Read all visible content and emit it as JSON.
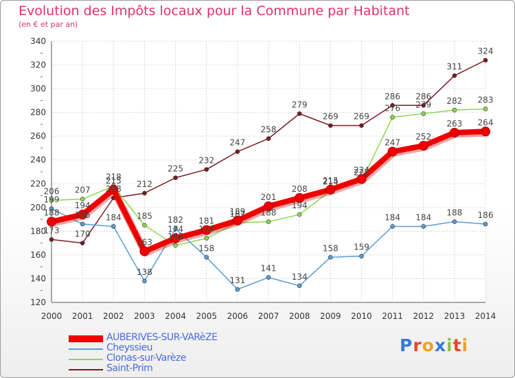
{
  "header": {
    "title": "Evolution des Impôts locaux pour la Commune par Habitant",
    "subtitle": "(en € et par an)"
  },
  "chart_data": {
    "type": "line",
    "title": "Evolution des Impôts locaux pour la Commune par Habitant",
    "subtitle": "(en € et par an)",
    "x": [
      "2000",
      "2001",
      "2002",
      "2003",
      "2004",
      "2005",
      "2006",
      "2007",
      "2008",
      "2009",
      "2010",
      "2011",
      "2012",
      "2013",
      "2014"
    ],
    "ylim": [
      120,
      340
    ],
    "yticks": [
      120,
      140,
      160,
      180,
      200,
      220,
      240,
      260,
      280,
      300,
      320,
      340
    ],
    "grid": true,
    "legend_position": "bottom-left",
    "series": [
      {
        "name": "Saint-Prim",
        "color": "#7a1a22",
        "values": [
          173,
          170,
          208,
          212,
          225,
          232,
          247,
          258,
          279,
          269,
          269,
          286,
          286,
          311,
          324
        ]
      },
      {
        "name": "Clonas-sur-Varèze",
        "color": "#8ed650",
        "values": [
          206,
          207,
          218,
          185,
          168,
          174,
          187,
          188,
          194,
          214,
          222,
          276,
          279,
          282,
          283
        ]
      },
      {
        "name": "Cheyssieu",
        "color": "#5a9bd5",
        "values": [
          199,
          186,
          184,
          138,
          182,
          158,
          131,
          141,
          134,
          158,
          159,
          184,
          184,
          188,
          186
        ]
      },
      {
        "name": "AUBERIVES-SUR-VARèZE",
        "color": "#ee0000",
        "values": [
          188,
          194,
          215,
          163,
          174,
          181,
          189,
          201,
          208,
          215,
          224,
          247,
          252,
          263,
          264
        ]
      }
    ]
  },
  "legend": {
    "items": [
      {
        "label": "AUBERIVES-SUR-VARèZE",
        "color": "#ee0000",
        "weight": 10
      },
      {
        "label": "Cheyssieu",
        "color": "#5a9bd5",
        "weight": 2
      },
      {
        "label": "Clonas-sur-Varèze",
        "color": "#8ed650",
        "weight": 2
      },
      {
        "label": "Saint-Prim",
        "color": "#7a1a22",
        "weight": 2
      }
    ]
  },
  "logo": {
    "letters": [
      "P",
      "r",
      "o",
      "x",
      "i",
      "t",
      "i"
    ],
    "colors": [
      "#3a78d8",
      "#e04a2a",
      "#f2a020",
      "#3a78d8",
      "#8bc34a",
      "#e04a2a",
      "#f2a020"
    ]
  }
}
